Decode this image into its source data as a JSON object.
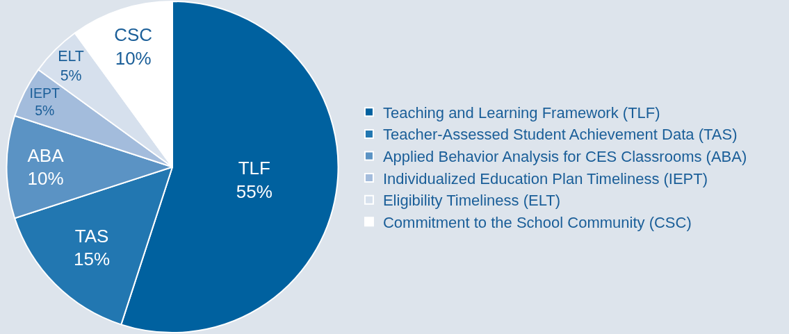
{
  "chart_data": {
    "type": "pie",
    "categories": [
      "Teaching and Learning Framework (TLF)",
      "Teacher-Assessed Student Achievement Data (TAS)",
      "Applied Behavior Analysis for CES Classrooms (ABA)",
      "Individualized Education Plan Timeliness (IEPT)",
      "Eligibility Timeliness (ELT)",
      "Commitment to the School Community (CSC)"
    ],
    "values": [
      55,
      15,
      10,
      5,
      5,
      10
    ],
    "value_labels": [
      "TLF\n55%",
      "TAS\n15%",
      "ABA\n10%",
      "IEPT\n5%",
      "ELT\n5%",
      "CSC\n10%"
    ],
    "colors": [
      "#00619f",
      "#2277b1",
      "#5b93c4",
      "#a3bcdc",
      "#d6e0ed",
      "#ffffff"
    ],
    "legend": "right"
  }
}
